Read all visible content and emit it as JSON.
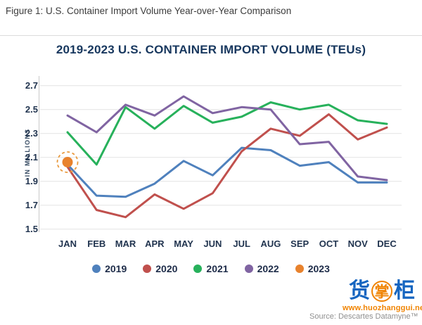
{
  "caption": "Figure 1: U.S. Container Import Volume Year-over-Year Comparison",
  "chart_data": {
    "type": "line",
    "title": "2019-2023 U.S. CONTAINER IMPORT VOLUME (TEUs)",
    "ylabel": "IN MILLIONS",
    "xlabel": "",
    "categories": [
      "JAN",
      "FEB",
      "MAR",
      "APR",
      "MAY",
      "JUN",
      "JUL",
      "AUG",
      "SEP",
      "OCT",
      "NOV",
      "DEC"
    ],
    "y_ticks": [
      2.7,
      2.5,
      2.3,
      2.1,
      1.9,
      1.7,
      1.5
    ],
    "ylim": [
      1.5,
      2.7
    ],
    "grid": true,
    "legend_position": "bottom",
    "series": [
      {
        "name": "2019",
        "color": "#4f81bd",
        "values": [
          2.04,
          1.78,
          1.77,
          1.88,
          2.07,
          1.95,
          2.18,
          2.16,
          2.03,
          2.06,
          1.89,
          1.89
        ]
      },
      {
        "name": "2020",
        "color": "#c0504d",
        "values": [
          2.02,
          1.66,
          1.6,
          1.79,
          1.67,
          1.8,
          2.15,
          2.34,
          2.28,
          2.46,
          2.25,
          2.35
        ]
      },
      {
        "name": "2021",
        "color": "#27b15b",
        "values": [
          2.31,
          2.04,
          2.52,
          2.34,
          2.53,
          2.39,
          2.44,
          2.56,
          2.5,
          2.54,
          2.41,
          2.38
        ]
      },
      {
        "name": "2022",
        "color": "#8064a2",
        "values": [
          2.45,
          2.31,
          2.54,
          2.45,
          2.61,
          2.47,
          2.52,
          2.5,
          2.21,
          2.23,
          1.94,
          1.91
        ]
      },
      {
        "name": "2023",
        "color": "#e8822d",
        "values": [
          2.06
        ],
        "marker": "dot",
        "annotation": "dashed-circle-highlight"
      }
    ]
  },
  "watermark": {
    "char_1": "货",
    "char_2": "掌",
    "char_3": "柜",
    "url": "www.huozhanggui.net",
    "blue": "#1565c0",
    "orange": "#f08300"
  },
  "source": "Source: Descartes Datamyne™",
  "style": {
    "grid_color": "#e3e3e3",
    "axis_color": "#c9c9c9",
    "title_color": "#17375e",
    "tick_color": "#21344f"
  }
}
